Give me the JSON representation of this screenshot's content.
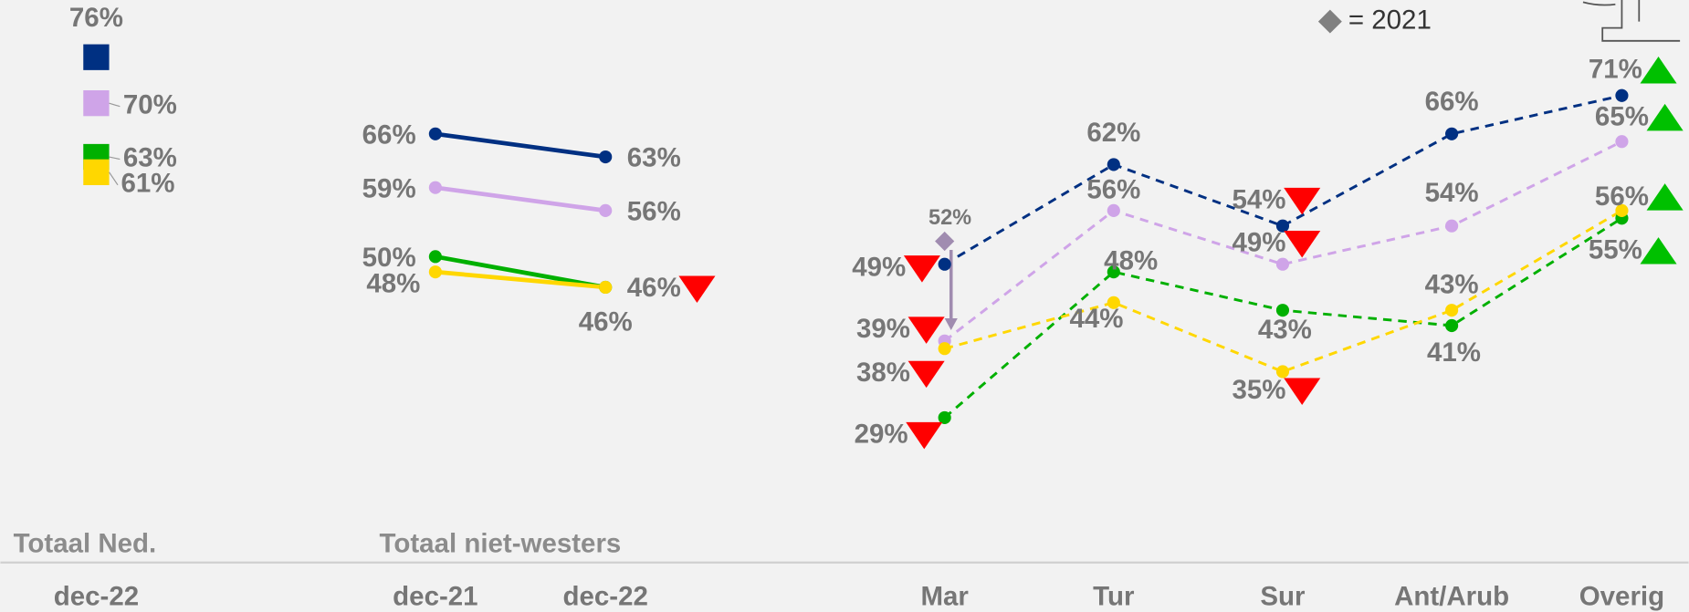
{
  "chart_data": [
    {
      "type": "marker",
      "title": "Totaal Ned.",
      "categories": [
        "dec-22"
      ],
      "series": [
        {
          "color": "#003082",
          "values": [
            76
          ],
          "value_labels": [
            "76%"
          ]
        },
        {
          "color": "#cfa4e8",
          "values": [
            70
          ],
          "value_labels": [
            "70%"
          ]
        },
        {
          "color": "#00b000",
          "values": [
            63
          ],
          "value_labels": [
            "63%"
          ]
        },
        {
          "color": "#ffd700",
          "values": [
            61
          ],
          "value_labels": [
            "61%"
          ]
        }
      ]
    },
    {
      "type": "line",
      "title": "Totaal niet-westers",
      "categories": [
        "dec-21",
        "dec-22"
      ],
      "line_style": "solid",
      "significance_colors": {
        "down": "#ff0000",
        "up": "#00c000"
      },
      "series": [
        {
          "color": "#003082",
          "values": [
            66,
            63
          ],
          "value_labels": [
            "66%",
            "63%"
          ],
          "significance": [
            null,
            null
          ]
        },
        {
          "color": "#cfa4e8",
          "values": [
            59,
            56
          ],
          "value_labels": [
            "59%",
            "56%"
          ],
          "significance": [
            null,
            null
          ]
        },
        {
          "color": "#00b000",
          "values": [
            50,
            46
          ],
          "value_labels": [
            "50%",
            "46%"
          ],
          "significance": [
            null,
            "down"
          ]
        },
        {
          "color": "#ffd700",
          "values": [
            48,
            46
          ],
          "value_labels": [
            "48%",
            "46%"
          ],
          "significance": [
            null,
            null
          ]
        }
      ]
    },
    {
      "type": "line",
      "categories": [
        "Mar",
        "Tur",
        "Sur",
        "Ant/Arub",
        "Overig"
      ],
      "line_style": "dashed",
      "significance_colors": {
        "down": "#ff0000",
        "up": "#00c000"
      },
      "series": [
        {
          "color": "#003082",
          "values": [
            49,
            62,
            54,
            66,
            71
          ],
          "value_labels": [
            "49%",
            "62%",
            "54%",
            "66%",
            "71%"
          ],
          "significance": [
            "down",
            null,
            "down",
            null,
            "up"
          ]
        },
        {
          "color": "#cfa4e8",
          "values": [
            39,
            56,
            49,
            54,
            65
          ],
          "value_labels": [
            "39%",
            "56%",
            "49%",
            "54%",
            "65%"
          ],
          "significance": [
            "down",
            null,
            "down",
            null,
            "up"
          ]
        },
        {
          "color": "#00b000",
          "values": [
            29,
            48,
            43,
            41,
            55
          ],
          "value_labels": [
            "29%",
            "48%",
            "43%",
            "41%",
            "55%"
          ],
          "significance": [
            "down",
            null,
            null,
            null,
            "up"
          ]
        },
        {
          "color": "#ffd700",
          "values": [
            38,
            44,
            35,
            43,
            56
          ],
          "value_labels": [
            "38%",
            "44%",
            "35%",
            "43%",
            "56%"
          ],
          "significance": [
            "down",
            null,
            "down",
            null,
            "up"
          ]
        }
      ],
      "reference": {
        "label": "= 2021",
        "category": "Mar",
        "value": 52,
        "value_label": "52%",
        "color": "#a08cb0"
      }
    }
  ]
}
